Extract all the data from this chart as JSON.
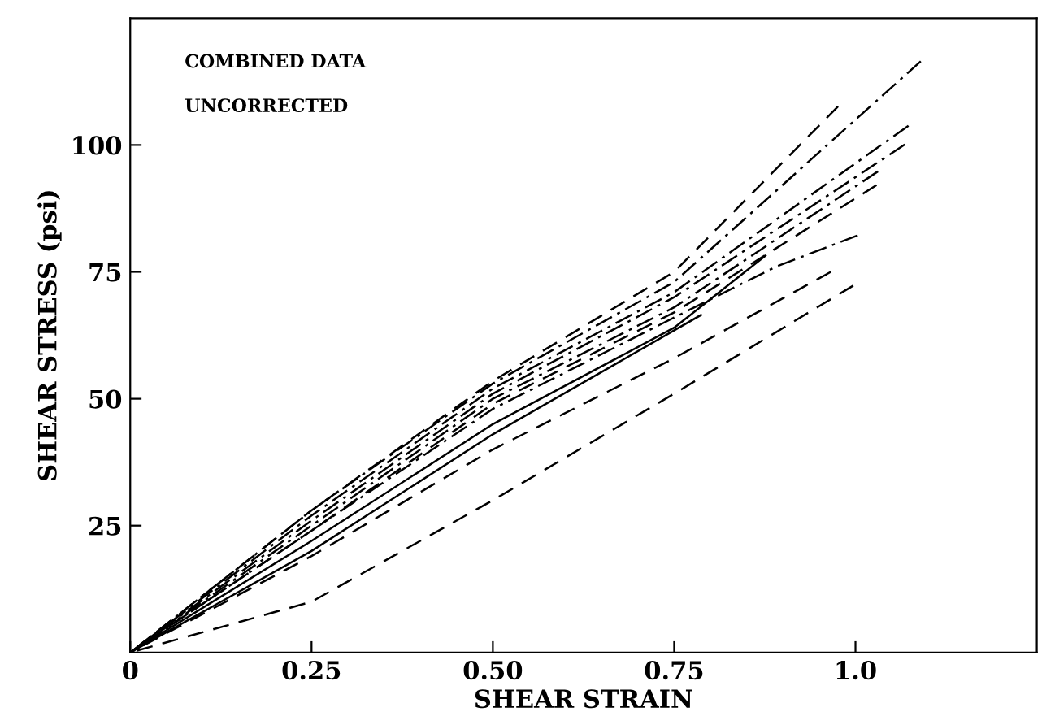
{
  "chart_data": {
    "type": "line",
    "xlabel": "SHEAR STRAIN",
    "ylabel": "SHEAR STRESS (psi)",
    "annotations": [
      "COMBINED DATA",
      "UNCORRECTED"
    ],
    "xlim": [
      0,
      1.25
    ],
    "ylim": [
      0,
      125
    ],
    "xticks": [
      {
        "value": 0,
        "label": "0"
      },
      0.25,
      {
        "value": 0.5,
        "label": "0.50"
      },
      0.75,
      {
        "value": 1.0,
        "label": "1.0"
      }
    ],
    "yticks": [
      25,
      50,
      75,
      100
    ],
    "grid": false,
    "legend": false,
    "marker": "none",
    "series": [
      {
        "color": "#000000",
        "line_style": "dashdot",
        "x": [
          0,
          0.25,
          0.5,
          0.75,
          1.09
        ],
        "values": [
          0,
          28,
          53,
          73,
          116.5
        ]
      },
      {
        "color": "#000000",
        "line_style": "dashed",
        "x": [
          0,
          0.25,
          0.5,
          0.75,
          0.976
        ],
        "values": [
          0,
          28,
          53.5,
          75,
          107.6
        ]
      },
      {
        "color": "#000000",
        "line_style": "dashdot",
        "x": [
          0,
          0.25,
          0.5,
          0.75,
          1.073
        ],
        "values": [
          0,
          27,
          52,
          71,
          103.8
        ]
      },
      {
        "color": "#000000",
        "line_style": "dashdot",
        "x": [
          0,
          0.25,
          0.5,
          0.75,
          1.068
        ],
        "values": [
          0,
          26,
          51,
          70,
          100.1
        ]
      },
      {
        "color": "#000000",
        "line_style": "dashdot",
        "x": [
          0,
          0.25,
          0.5,
          0.75,
          1.031
        ],
        "values": [
          0,
          25,
          50,
          68,
          94.8
        ]
      },
      {
        "color": "#000000",
        "line_style": "dashed",
        "x": [
          0,
          0.25,
          0.5,
          0.75,
          1.029
        ],
        "values": [
          0,
          24,
          49,
          67,
          92.1
        ]
      },
      {
        "color": "#000000",
        "line_style": "dashdot",
        "x": [
          0,
          0.25,
          0.5,
          0.75,
          0.89,
          1.003
        ],
        "values": [
          0,
          24,
          48,
          66,
          76,
          82.2
        ]
      },
      {
        "color": "#000000",
        "line_style": "solid",
        "x": [
          0,
          0.25,
          0.5,
          0.75,
          0.876
        ],
        "values": [
          0,
          22,
          45,
          64,
          78.2
        ]
      },
      {
        "color": "#000000",
        "line_style": "solid",
        "x": [
          0,
          0.25,
          0.5,
          0.787
        ],
        "values": [
          0,
          20,
          43,
          66.5
        ]
      },
      {
        "color": "#000000",
        "line_style": "dashed",
        "x": [
          0,
          0.25,
          0.5,
          0.75,
          0.966
        ],
        "values": [
          0,
          19,
          40,
          58,
          75
        ]
      },
      {
        "color": "#000000",
        "line_style": "dashed",
        "x": [
          0,
          0.25,
          0.5,
          0.75,
          0.997
        ],
        "values": [
          0,
          10,
          30,
          51,
          72.3
        ]
      }
    ]
  }
}
